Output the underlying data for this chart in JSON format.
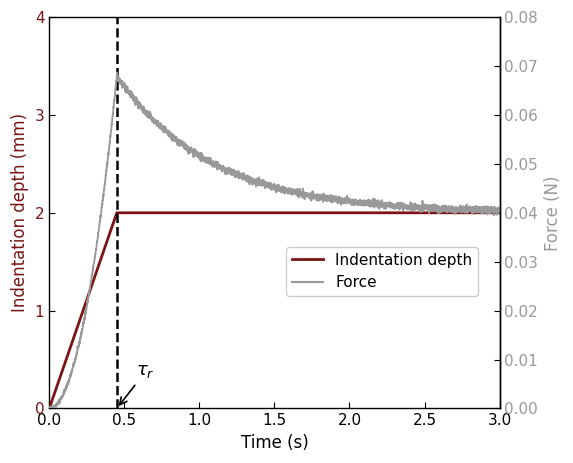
{
  "title": "",
  "xlabel": "Time (s)",
  "ylabel_left": "Indentation depth (mm)",
  "ylabel_right": "Force (N)",
  "xlim": [
    0.0,
    3.0
  ],
  "ylim_left": [
    0.0,
    4.0
  ],
  "ylim_right": [
    0.0,
    0.08
  ],
  "tau_r": 0.45,
  "depth_plateau": 2.0,
  "force_peak": 0.068,
  "force_plateau": 0.04,
  "force_decay_k": 1.6,
  "force_ramp_power": 2.0,
  "depth_color": "#7B1515",
  "force_color": "#999999",
  "dashed_color": "#000000",
  "legend_labels": [
    "Indentation depth",
    "Force"
  ],
  "xticks": [
    0.0,
    0.5,
    1.0,
    1.5,
    2.0,
    2.5,
    3.0
  ],
  "yticks_left": [
    0,
    1,
    2,
    3,
    4
  ],
  "yticks_right": [
    0.0,
    0.01,
    0.02,
    0.03,
    0.04,
    0.05,
    0.06,
    0.07,
    0.08
  ],
  "tau_r_label": "$\\tau_r$",
  "fig_width": 5.73,
  "fig_height": 4.63,
  "dpi": 100,
  "noise_std_ramp": 0.0002,
  "noise_std_hold": 0.00035
}
